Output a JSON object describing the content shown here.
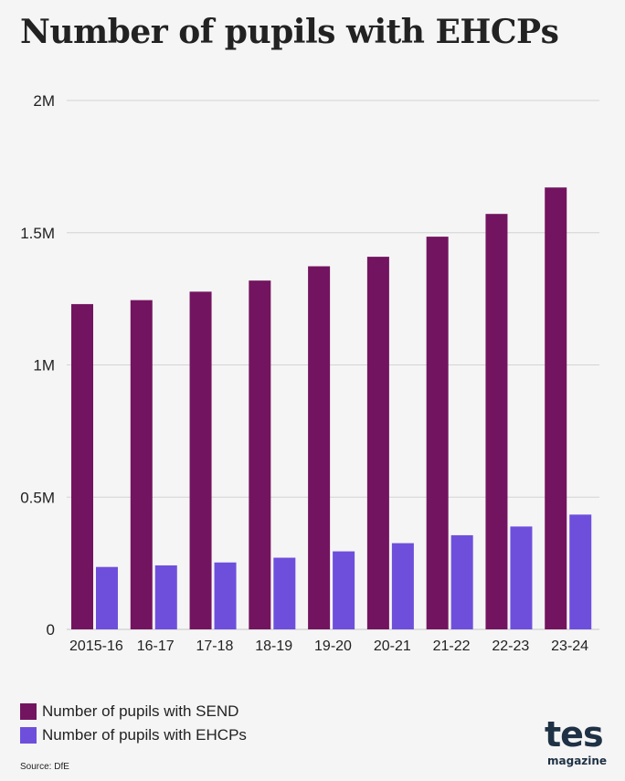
{
  "title": "Number of pupils with EHCPs",
  "source": "Source: DfE",
  "logo": {
    "main": "tes",
    "sub": "magazine"
  },
  "colors": {
    "send": "#731460",
    "ehcp": "#6e4fdc",
    "grid": "#d4d4d4",
    "background": "#f5f5f5"
  },
  "chart_data": {
    "type": "bar",
    "title": "Number of pupils with EHCPs",
    "xlabel": "",
    "ylabel": "",
    "categories": [
      "2015-16",
      "16-17",
      "17-18",
      "18-19",
      "19-20",
      "20-21",
      "21-22",
      "22-23",
      "23-24"
    ],
    "series": [
      {
        "name": "Number of pupils with SEND",
        "color": "#731460",
        "values": [
          1230000,
          1245000,
          1277000,
          1319000,
          1373000,
          1409000,
          1485000,
          1571000,
          1671000
        ]
      },
      {
        "name": "Number of pupils with EHCPs",
        "color": "#6e4fdc",
        "values": [
          236000,
          242000,
          253000,
          271000,
          295000,
          326000,
          356000,
          389000,
          434000
        ]
      }
    ],
    "ylim": [
      0,
      2000000
    ],
    "yticks": [
      0,
      500000,
      1000000,
      1500000,
      2000000
    ],
    "ytick_labels": [
      "0",
      "0.5M",
      "1M",
      "1.5M",
      "2M"
    ],
    "grid": true,
    "legend": "bottom-left"
  }
}
